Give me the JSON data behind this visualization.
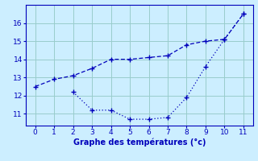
{
  "line1_x": [
    0,
    1,
    2,
    3,
    4,
    5,
    6,
    7,
    8,
    9,
    10,
    11
  ],
  "line1_y": [
    12.5,
    12.9,
    13.1,
    13.5,
    14.0,
    14.0,
    14.1,
    14.2,
    14.8,
    15.0,
    15.1,
    16.5
  ],
  "line2_x": [
    2,
    3,
    4,
    5,
    6,
    7,
    8,
    9,
    10,
    11
  ],
  "line2_y": [
    12.2,
    11.2,
    11.2,
    10.7,
    10.7,
    10.8,
    11.9,
    13.6,
    15.1,
    16.5
  ],
  "line_color": "#0000bb",
  "bg_color": "#cceeff",
  "grid_color": "#99cccc",
  "xlabel": "Graphe des températures (°c)",
  "xlabel_color": "#0000bb",
  "xlim": [
    -0.5,
    11.5
  ],
  "ylim": [
    10.35,
    17.0
  ],
  "yticks": [
    11,
    12,
    13,
    14,
    15,
    16
  ],
  "xticks": [
    0,
    1,
    2,
    3,
    4,
    5,
    6,
    7,
    8,
    9,
    10,
    11
  ],
  "marker": "+",
  "markersize": 4,
  "linewidth": 0.9,
  "tick_fontsize": 6.5,
  "xlabel_fontsize": 7
}
